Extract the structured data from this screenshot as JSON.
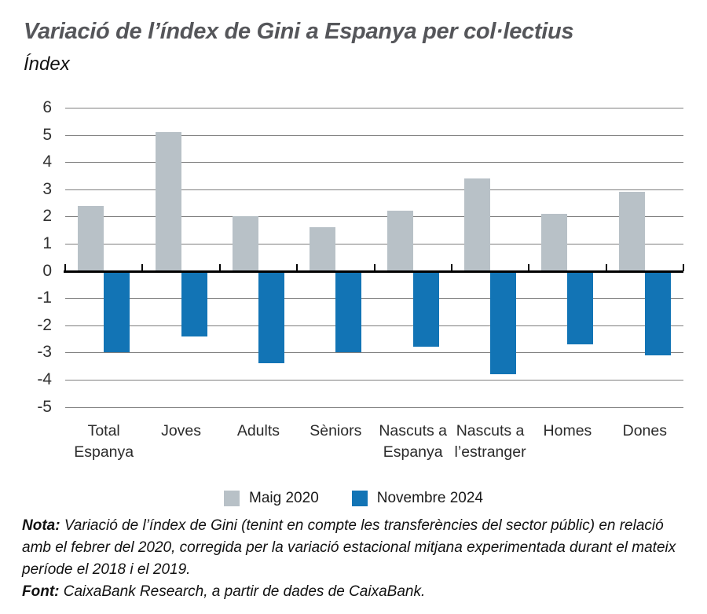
{
  "header": {
    "title": "Variació de l’índex de Gini a Espanya per col·lectius",
    "subtitle": "Índex"
  },
  "chart_data": {
    "type": "bar",
    "title": "Variació de l’índex de Gini a Espanya per col·lectius",
    "subtitle": "Índex",
    "categories": [
      "Total Espanya",
      "Joves",
      "Adults",
      "Sèniors",
      "Nascuts a Espanya",
      "Nascuts a l’estranger",
      "Homes",
      "Dones"
    ],
    "series": [
      {
        "name": "Maig 2020",
        "color": "#b8c1c7",
        "values": [
          2.4,
          5.1,
          2.0,
          1.6,
          2.2,
          3.4,
          2.1,
          2.9
        ]
      },
      {
        "name": "Novembre 2024",
        "color": "#1274b5",
        "values": [
          -3.0,
          -2.4,
          -3.4,
          -3.0,
          -2.8,
          -3.8,
          -2.7,
          -3.1
        ]
      }
    ],
    "ylim": [
      -5,
      6
    ],
    "ytick_step": 1,
    "grid": true,
    "gridline_color": "#7f7f7f",
    "zero_axis_color": "#000000",
    "legend_position": "bottom",
    "xlabel": "",
    "ylabel": "Índex"
  },
  "notes": {
    "nota_label": "Nota:",
    "nota_text": " Variació de l’índex de Gini (tenint en compte les transferències del sector públic) en relació amb el febrer del 2020, corregida per la variació estacional mitjana experimentada durant el mateix període el 2018 i el 2019.",
    "font_label": "Font:",
    "font_text": " CaixaBank Research, a partir de dades de CaixaBank."
  }
}
